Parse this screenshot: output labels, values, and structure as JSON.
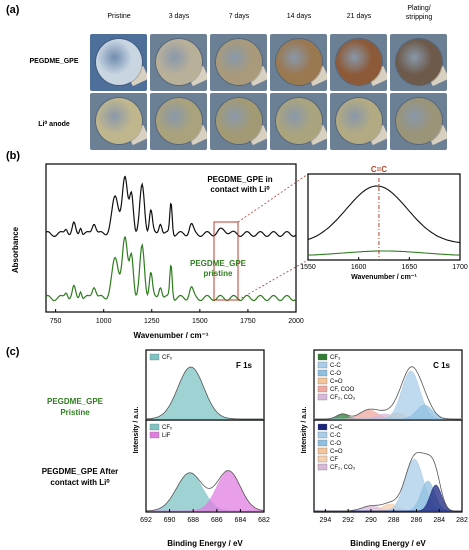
{
  "panel_a": {
    "label": "(a)",
    "columns": [
      "Pristine",
      "3 days",
      "7 days",
      "14 days",
      "21 days",
      "Plating/\nstripping"
    ],
    "rows": [
      "PEGDME_GPE",
      "Li⁰ anode"
    ],
    "photo_colors": {
      "bg_blue": "#5f7fa8",
      "gpe": [
        "#c9d6e2",
        "#b9b09a",
        "#a89a7a",
        "#9a7850",
        "#8c5a38",
        "#6d5a4a"
      ],
      "anode": [
        "#bfb68e",
        "#a9a27c",
        "#a29a74",
        "#aaa47e",
        "#b2aa82",
        "#9a9478"
      ]
    }
  },
  "panel_b": {
    "label": "(b)",
    "main": {
      "ylabel": "Absorbance",
      "xlabel": "Wavenumber / cm⁻¹",
      "xticks": [
        "750",
        "1000",
        "1250",
        "1500",
        "1750",
        "2000"
      ],
      "label_contact_1": "PEGDME_GPE in",
      "label_contact_2": "contact with Li⁰",
      "label_pristine_1": "PEGDME_GPE",
      "label_pristine_2": "pristine"
    },
    "inset": {
      "peak_label": "C=C",
      "xlabel": "Wavenumber / cm⁻¹",
      "xticks": [
        "1550",
        "1600",
        "1650",
        "1700"
      ]
    },
    "colors": {
      "contact": "#111111",
      "pristine": "#2e7d1e",
      "peak_line": "#b5452a",
      "box": "#c0392b"
    }
  },
  "panel_c": {
    "label": "(c)",
    "row_labels": {
      "pristine_1": "PEGDME_GPE",
      "pristine_2": "Pristine",
      "after_1": "PEGDME_GPE After",
      "after_2": "contact with Li⁰"
    },
    "f1s": {
      "title": "F 1s",
      "ylabel": "Intensity / a.u.",
      "xlabel": "Binding Energy / eV",
      "xticks": [
        "692",
        "690",
        "688",
        "686",
        "684",
        "682"
      ],
      "top_legend": [
        "CFₓ"
      ],
      "bottom_legend": [
        "CFₓ",
        "LiF"
      ]
    },
    "c1s": {
      "title": "C 1s",
      "ylabel": "Intensity / a.u.",
      "xlabel": "Binding Energy / eV",
      "xticks": [
        "294",
        "292",
        "290",
        "288",
        "286",
        "284",
        "282"
      ],
      "top_legend": [
        "CF₃",
        "C-C",
        "C-O",
        "C=O",
        "CF, COO",
        "CF₂, CO₃"
      ],
      "bottom_legend": [
        "C=C",
        "C-C",
        "C-O",
        "C=O",
        "CF",
        "CF₂, CO₃"
      ]
    },
    "colors": {
      "cfx": "#7fc4c4",
      "lif": "#e07ee0",
      "cf3": "#2e7d32",
      "cc": "#a9cde8",
      "co": "#8fbfe0",
      "ceo": "#f4c49a",
      "cfcoo": "#f0a8a0",
      "cf2co3": "#d8b8d8",
      "cdc": "#1a237e",
      "cf": "#f4d0b0"
    }
  }
}
